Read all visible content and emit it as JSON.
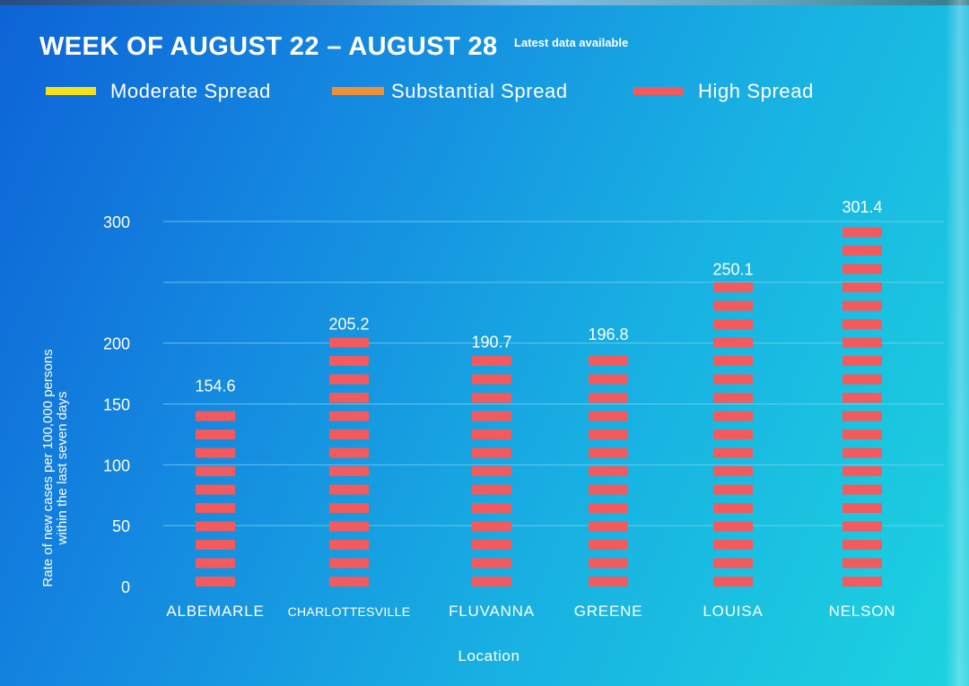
{
  "header": {
    "title": "WEEK OF AUGUST 22 – AUGUST 28",
    "subtitle": "Latest data available"
  },
  "legend": [
    {
      "label": "Moderate Spread",
      "color": "#f5e11b"
    },
    {
      "label": "Substantial Spread",
      "color": "#ee8f3a"
    },
    {
      "label": "High Spread",
      "color": "#f25a5e"
    }
  ],
  "colors": {
    "bar": "#f25a5e",
    "grid": "#7fd4f2",
    "text": "#ffffff"
  },
  "chart_data": {
    "type": "bar",
    "categories": [
      "ALBEMARLE",
      "CHARLOTTESVILLE",
      "FLUVANNA",
      "GREENE",
      "LOUISA",
      "NELSON"
    ],
    "values": [
      154.6,
      205.2,
      190.7,
      196.8,
      250.1,
      301.4
    ],
    "data_labels": [
      "154.6",
      "205.2",
      "190.7",
      "196.8",
      "250.1",
      "301.4"
    ],
    "xlabel": "Location",
    "ylabel_lines": [
      "Rate of new cases per 100,000 persons",
      "within the last seven days"
    ],
    "yticks": [
      0,
      50,
      100,
      150,
      200,
      300
    ],
    "ytick_labels": [
      "0",
      "50",
      "100",
      "150",
      "200",
      "300"
    ],
    "grid": true,
    "bar_style": "dashed segments",
    "legend_position": "top"
  }
}
